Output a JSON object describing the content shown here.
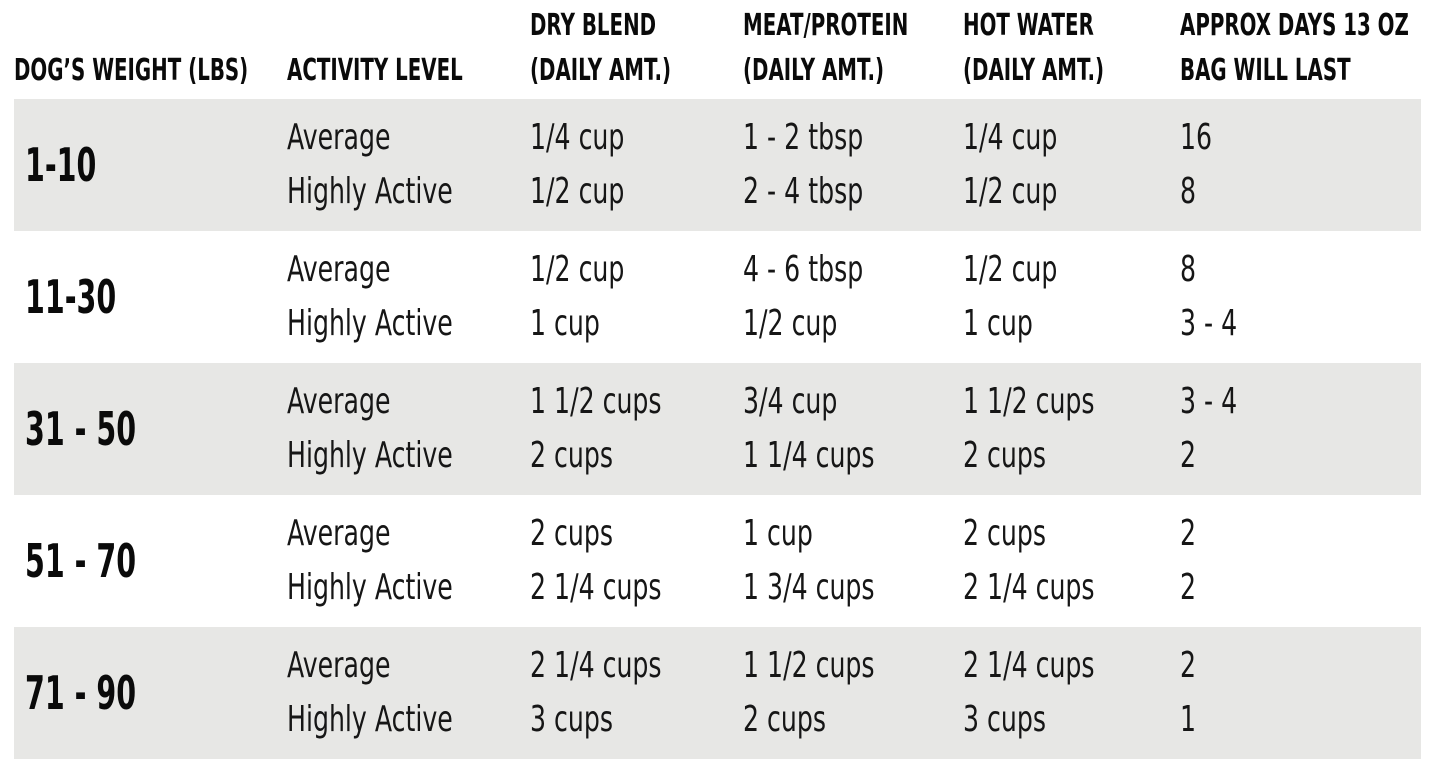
{
  "table": {
    "title_semantic": "Dog feeding guide",
    "columns": [
      {
        "lines": [
          "DOG’S WEIGHT (LBS)"
        ]
      },
      {
        "lines": [
          "ACTIVITY LEVEL"
        ]
      },
      {
        "lines": [
          "DRY BLEND",
          "(DAILY AMT.)"
        ]
      },
      {
        "lines": [
          "MEAT/PROTEIN",
          "(DAILY AMT.)"
        ]
      },
      {
        "lines": [
          "HOT WATER",
          "(DAILY AMT.)"
        ]
      },
      {
        "lines": [
          "APPROX DAYS 13 OZ",
          "BAG WILL LAST"
        ]
      }
    ],
    "rows": [
      {
        "weight": "1-10",
        "entries": [
          {
            "activity": "Average",
            "dry_blend": "1/4 cup",
            "meat_protein": "1 - 2 tbsp",
            "hot_water": "1/4 cup",
            "days_bag_lasts": "16"
          },
          {
            "activity": "Highly Active",
            "dry_blend": "1/2 cup",
            "meat_protein": "2 - 4 tbsp",
            "hot_water": "1/2 cup",
            "days_bag_lasts": "8"
          }
        ]
      },
      {
        "weight": "11-30",
        "entries": [
          {
            "activity": "Average",
            "dry_blend": "1/2 cup",
            "meat_protein": "4 - 6 tbsp",
            "hot_water": "1/2 cup",
            "days_bag_lasts": "8"
          },
          {
            "activity": "Highly Active",
            "dry_blend": "1 cup",
            "meat_protein": "1/2 cup",
            "hot_water": "1 cup",
            "days_bag_lasts": "3 - 4"
          }
        ]
      },
      {
        "weight": "31 - 50",
        "entries": [
          {
            "activity": "Average",
            "dry_blend": "1 1/2 cups",
            "meat_protein": "3/4 cup",
            "hot_water": "1 1/2 cups",
            "days_bag_lasts": "3 - 4"
          },
          {
            "activity": "Highly Active",
            "dry_blend": "2 cups",
            "meat_protein": "1 1/4 cups",
            "hot_water": "2 cups",
            "days_bag_lasts": "2"
          }
        ]
      },
      {
        "weight": "51 - 70",
        "entries": [
          {
            "activity": "Average",
            "dry_blend": "2 cups",
            "meat_protein": "1 cup",
            "hot_water": "2 cups",
            "days_bag_lasts": "2"
          },
          {
            "activity": "Highly Active",
            "dry_blend": "2 1/4 cups",
            "meat_protein": "1 3/4 cups",
            "hot_water": "2 1/4 cups",
            "days_bag_lasts": "2"
          }
        ]
      },
      {
        "weight": "71 - 90",
        "entries": [
          {
            "activity": "Average",
            "dry_blend": "2 1/4 cups",
            "meat_protein": "1 1/2 cups",
            "hot_water": "2 1/4 cups",
            "days_bag_lasts": "2"
          },
          {
            "activity": "Highly Active",
            "dry_blend": "3 cups",
            "meat_protein": "2 cups",
            "hot_water": "3 cups",
            "days_bag_lasts": "1"
          }
        ]
      }
    ]
  },
  "colors": {
    "row_band_gray": "#e7e7e5",
    "row_band_white": "#ffffff",
    "text_black": "#111111",
    "page_background": "#ffffff"
  }
}
